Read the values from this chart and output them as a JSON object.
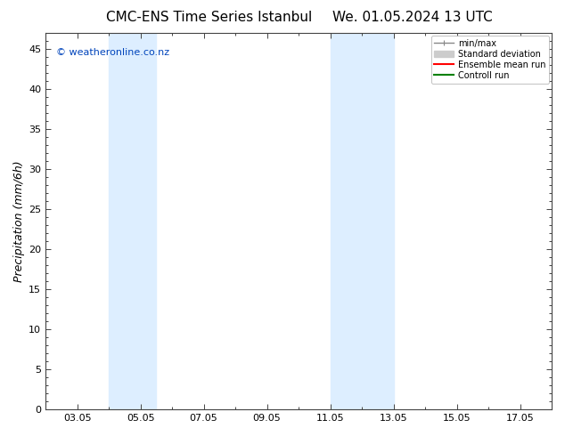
{
  "title_left": "CMC-ENS Time Series Istanbul",
  "title_right": "We. 01.05.2024 13 UTC",
  "ylabel": "Precipitation (mm/6h)",
  "background_color": "#ffffff",
  "plot_bg_color": "#ffffff",
  "ylim": [
    0,
    47
  ],
  "yticks": [
    0,
    5,
    10,
    15,
    20,
    25,
    30,
    35,
    40,
    45
  ],
  "xlabel_dates": [
    "03.05",
    "05.05",
    "07.05",
    "09.05",
    "11.05",
    "13.05",
    "15.05",
    "17.05"
  ],
  "x_tick_positions": [
    3,
    5,
    7,
    9,
    11,
    13,
    15,
    17
  ],
  "x_minor_positions": [
    2,
    4,
    6,
    8,
    10,
    12,
    14,
    16,
    18
  ],
  "x_min": 2.0,
  "x_max": 18.0,
  "watermark": "© weatheronline.co.nz",
  "watermark_color": "#0044bb",
  "shaded_groups": [
    {
      "x_start": 4.0,
      "x_end": 5.5
    },
    {
      "x_start": 11.0,
      "x_end": 13.0
    }
  ],
  "shaded_color": "#ddeeff",
  "legend_items": [
    {
      "label": "min/max",
      "color": "#888888",
      "lw": 1.0
    },
    {
      "label": "Standard deviation",
      "color": "#cccccc",
      "lw": 6
    },
    {
      "label": "Ensemble mean run",
      "color": "#ff0000",
      "lw": 1.5
    },
    {
      "label": "Controll run",
      "color": "#008000",
      "lw": 1.5
    }
  ],
  "tick_label_fontsize": 8,
  "axis_label_fontsize": 9,
  "title_fontsize": 11,
  "spine_color": "#444444",
  "tick_color": "#444444"
}
